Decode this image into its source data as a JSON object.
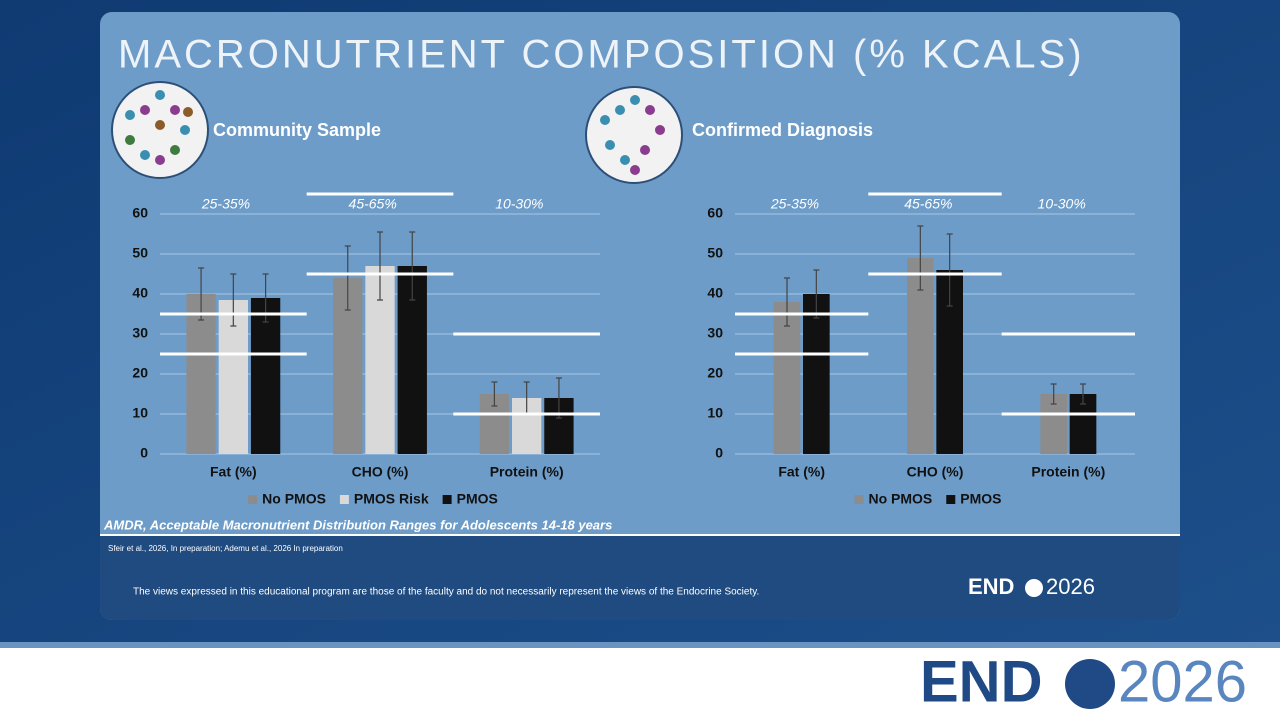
{
  "slide_title": "MACRONUTRIENT COMPOSITION (% KCALS)",
  "footnote": "AMDR, Acceptable Macronutrient Distribution Ranges for Adolescents 14-18 years",
  "citation": "Sfeir et al., 2026, In preparation; Ademu et al., 2026 In preparation",
  "disclaimer": "The views expressed in this educational program are those of the faculty and do not necessarily represent the views of the Endocrine Society.",
  "logo_text": "END",
  "logo_year": "2026",
  "chart_data": [
    {
      "type": "bar",
      "title": "Community Sample",
      "categories": [
        "Fat (%)",
        "CHO (%)",
        "Protein (%)"
      ],
      "series": [
        {
          "name": "No PMOS",
          "color": "#8c8c8c",
          "values": [
            40,
            44,
            15
          ],
          "errors": [
            6.5,
            8,
            3
          ]
        },
        {
          "name": "PMOS Risk",
          "color": "#d9d9d9",
          "values": [
            38.5,
            47,
            14
          ],
          "errors": [
            6.5,
            8.5,
            4
          ]
        },
        {
          "name": "PMOS",
          "color": "#111111",
          "values": [
            39,
            47,
            14
          ],
          "errors": [
            6,
            8.5,
            5
          ]
        }
      ],
      "ranges": [
        {
          "label": "25-35%",
          "low": 25,
          "high": 35
        },
        {
          "label": "45-65%",
          "low": 45,
          "high": 65
        },
        {
          "label": "10-30%",
          "low": 10,
          "high": 30
        }
      ],
      "ylim": [
        0,
        60
      ],
      "yticks": [
        0,
        10,
        20,
        30,
        40,
        50,
        60
      ],
      "grid": true
    },
    {
      "type": "bar",
      "title": "Confirmed Diagnosis",
      "categories": [
        "Fat (%)",
        "CHO (%)",
        "Protein (%)"
      ],
      "series": [
        {
          "name": "No PMOS",
          "color": "#8c8c8c",
          "values": [
            38,
            49,
            15
          ],
          "errors": [
            6,
            8,
            2.5
          ]
        },
        {
          "name": "PMOS",
          "color": "#111111",
          "values": [
            40,
            46,
            15
          ],
          "errors": [
            6,
            9,
            2.5
          ]
        }
      ],
      "ranges": [
        {
          "label": "25-35%",
          "low": 25,
          "high": 35
        },
        {
          "label": "45-65%",
          "low": 45,
          "high": 65
        },
        {
          "label": "10-30%",
          "low": 10,
          "high": 30
        }
      ],
      "ylim": [
        0,
        60
      ],
      "yticks": [
        0,
        10,
        20,
        30,
        40,
        50,
        60
      ],
      "grid": true
    }
  ]
}
